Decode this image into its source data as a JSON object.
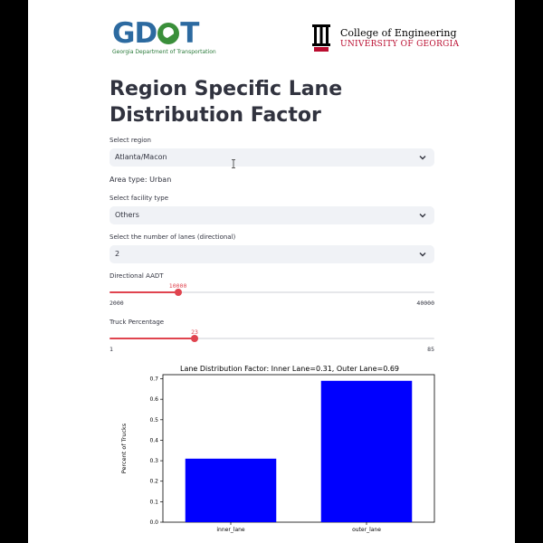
{
  "logos": {
    "gdot_mark": "GDOT",
    "gdot_subtitle": "Georgia Department of Transportation",
    "uga_line1": "College of Engineering",
    "uga_line2": "UNIVERSITY OF GEORGIA",
    "uga_brand_color": "#BA0C2F",
    "gdot_brand_color": "#2C6AA0"
  },
  "title": "Region Specific Lane Distribution Factor",
  "region": {
    "label": "Select region",
    "value": "Atlanta/Macon"
  },
  "area_type": "Area type: Urban",
  "facility": {
    "label": "Select facility type",
    "value": "Others"
  },
  "lanes": {
    "label": "Select the number of lanes (directional)",
    "value": "2"
  },
  "aadt": {
    "label": "Directional AADT",
    "min": 2000,
    "max": 40000,
    "value": 10000,
    "min_label": "2000",
    "max_label": "40000",
    "value_label": "10000"
  },
  "truck": {
    "label": "Truck Percentage",
    "min": 1,
    "max": 85,
    "value": 23,
    "min_label": "1",
    "max_label": "85",
    "value_label": "23"
  },
  "accent_color": "#E0444F",
  "chart_data": {
    "type": "bar",
    "title": "Lane Distribution Factor: Inner Lane=0.31, Outer Lane=0.69",
    "categories": [
      "inner_lane",
      "outer_lane"
    ],
    "values": [
      0.31,
      0.69
    ],
    "ylabel": "Percent of Trucks",
    "xlabel": "",
    "ylim": [
      0,
      0.72
    ],
    "yticks": [
      0.0,
      0.1,
      0.2,
      0.3,
      0.4,
      0.5,
      0.6,
      0.7
    ],
    "bar_color": "#0000FF",
    "grid": false
  }
}
